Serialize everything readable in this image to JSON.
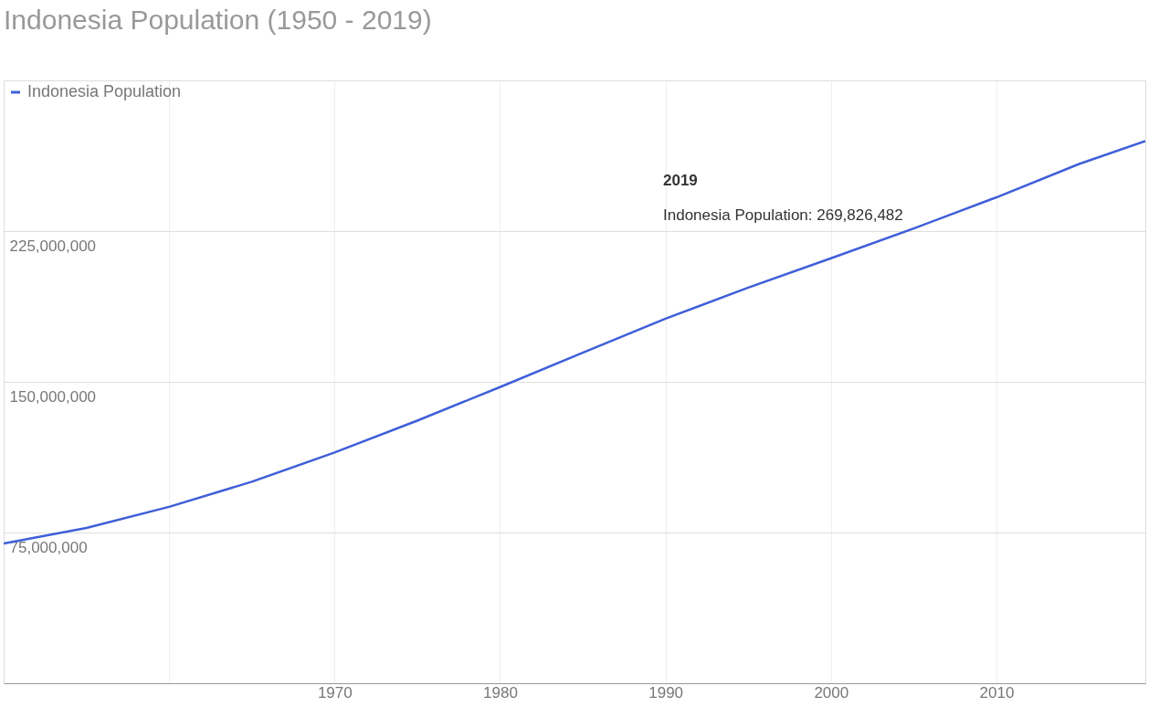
{
  "chart_data": {
    "type": "line",
    "title": "Indonesia Population (1950 - 2019)",
    "x": [
      1950,
      1955,
      1960,
      1965,
      1970,
      1975,
      1980,
      1985,
      1990,
      1995,
      2000,
      2005,
      2010,
      2015,
      2019
    ],
    "series": [
      {
        "name": "Indonesia Population",
        "color": "#3f5fd8",
        "values": [
          69500000,
          77300000,
          87800000,
          100300000,
          114800000,
          130700000,
          147400000,
          164500000,
          181400000,
          196900000,
          211500000,
          226300000,
          241800000,
          258400000,
          269826482
        ]
      }
    ],
    "xlim": [
      1950,
      2019
    ],
    "xticks": [
      {
        "value": 1960,
        "label": null
      },
      1970,
      1980,
      1990,
      2000,
      2010
    ],
    "ylim": [
      0,
      300000000
    ],
    "yticks": [
      {
        "value": 75000000,
        "label": "75,000,000"
      },
      {
        "value": 150000000,
        "label": "150,000,000"
      },
      {
        "value": 225000000,
        "label": "225,000,000"
      }
    ],
    "grid": true,
    "legend": "top left",
    "line_style": "solid",
    "marker": "none",
    "annotations": [
      "2019",
      "Indonesia Population: 269,826,482"
    ]
  }
}
